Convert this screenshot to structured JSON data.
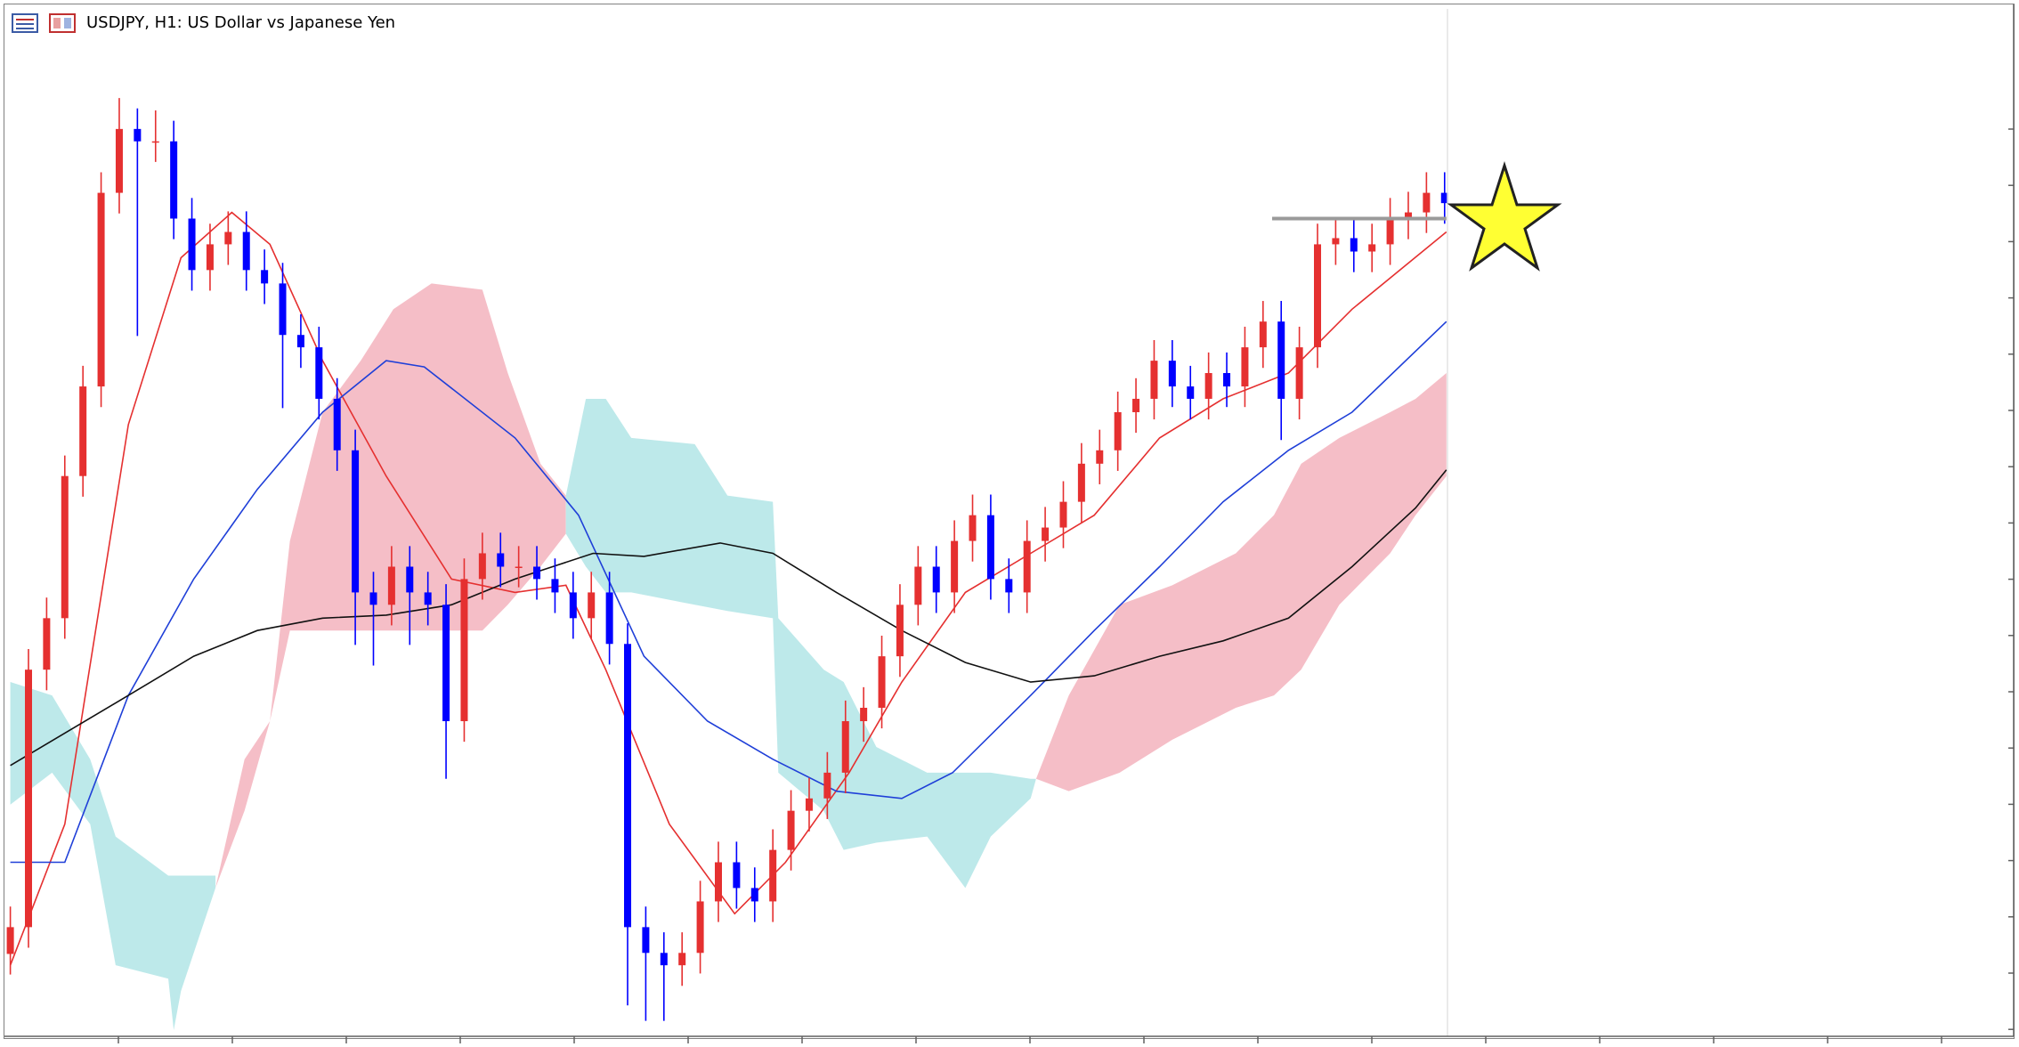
{
  "chart_data": {
    "type": "candlestick",
    "title": "USDJPY, H1:  US Dollar vs Japanese Yen",
    "xlim": [
      0,
      110
    ],
    "ylim": [
      0,
      100
    ],
    "up_color": "#e53030",
    "down_color": "#0000ff",
    "open": [
      8,
      10.6,
      35.6,
      40.6,
      54.4,
      63.1,
      81.9,
      88.1,
      86.9,
      86.9,
      79.4,
      74.4,
      76.9,
      78.1,
      74.4,
      73.1,
      68.1,
      66.9,
      61.9,
      56.9,
      43.1,
      41.9,
      45.6,
      43.1,
      41.9,
      30.6,
      44.4,
      46.9,
      45.6,
      45.6,
      44.4,
      43.1,
      40.6,
      43.1,
      38.1,
      10.6,
      8.1,
      6.9,
      8.1,
      13.1,
      16.9,
      14.4,
      13.1,
      18.1,
      21.9,
      23.1,
      25.6,
      30.6,
      31.9,
      36.9,
      41.9,
      45.6,
      43.1,
      48.1,
      50.6,
      44.4,
      43.1,
      48.1,
      49.4,
      51.9,
      55.6,
      56.9,
      60.6,
      61.9,
      65.6,
      63.1,
      61.9,
      64.4,
      63.1,
      66.9,
      69.4,
      61.9,
      66.9,
      76.9,
      77.5,
      76.2,
      76.9,
      79.4,
      80,
      81.9
    ],
    "high": [
      12.6,
      37.6,
      42.6,
      56.4,
      65.1,
      83.9,
      91.1,
      90.1,
      89.9,
      88.9,
      81.4,
      78.9,
      80.1,
      80.1,
      76.4,
      75.1,
      70.1,
      68.9,
      63.9,
      58.9,
      45.1,
      47.6,
      47.6,
      45.1,
      43.9,
      46.4,
      48.9,
      48.9,
      47.6,
      47.6,
      46.4,
      45.1,
      45.1,
      45.1,
      40.1,
      12.6,
      10.1,
      10.1,
      15.1,
      18.9,
      18.9,
      16.4,
      20.1,
      23.9,
      25.1,
      27.6,
      32.6,
      33.9,
      38.9,
      43.9,
      47.6,
      47.6,
      50.1,
      52.6,
      52.6,
      46.4,
      50.1,
      51.4,
      53.9,
      57.6,
      58.9,
      62.6,
      63.9,
      67.6,
      67.6,
      65.1,
      66.4,
      66.4,
      68.9,
      71.4,
      71.4,
      68.9,
      78.9,
      79.5,
      79.5,
      78.9,
      81.4,
      82,
      83.9,
      83.9
    ],
    "low": [
      6,
      8.6,
      33.6,
      38.6,
      52.4,
      61.1,
      79.9,
      68,
      84.9,
      77.4,
      72.4,
      72.4,
      74.9,
      72.4,
      71.1,
      61,
      64.9,
      59.9,
      54.9,
      38,
      36,
      39.9,
      38,
      39.9,
      25,
      28.6,
      42.4,
      43.6,
      43.6,
      42.4,
      41.1,
      38.6,
      38.6,
      36.1,
      3,
      1.5,
      1.5,
      4.9,
      6.1,
      11.1,
      12.4,
      11.1,
      11.1,
      16.1,
      19.9,
      21.1,
      23.6,
      28.6,
      29.9,
      34.9,
      39.9,
      41.1,
      41.1,
      46.1,
      42.4,
      41.1,
      41.1,
      46.1,
      47.4,
      49.9,
      53.6,
      54.9,
      58.6,
      59.9,
      61.1,
      59.9,
      59.9,
      61.1,
      61.1,
      64.9,
      57.9,
      59.9,
      64.9,
      74.9,
      74.2,
      74.2,
      74.9,
      77.4,
      78,
      78.9
    ],
    "close": [
      10.6,
      35.6,
      40.6,
      54.4,
      63.1,
      81.9,
      88.1,
      86.9,
      86.9,
      79.4,
      74.4,
      76.9,
      78.1,
      74.4,
      73.1,
      68.1,
      66.9,
      61.9,
      56.9,
      43.1,
      41.9,
      45.6,
      43.1,
      41.9,
      30.6,
      44.4,
      46.9,
      45.6,
      45.6,
      44.4,
      43.1,
      40.6,
      43.1,
      38.1,
      10.6,
      8.1,
      6.9,
      8.1,
      13.1,
      16.9,
      14.4,
      13.1,
      18.1,
      21.9,
      23.1,
      25.6,
      30.6,
      31.9,
      36.9,
      41.9,
      45.6,
      43.1,
      48.1,
      50.6,
      44.4,
      43.1,
      48.1,
      49.4,
      51.9,
      55.6,
      56.9,
      60.6,
      61.9,
      65.6,
      63.1,
      61.9,
      64.4,
      63.1,
      66.9,
      69.4,
      61.9,
      66.9,
      76.9,
      77.5,
      76.2,
      76.9,
      79.4,
      80,
      81.9,
      80.9
    ],
    "cloud": [
      {
        "color": "#bde9ea",
        "x": [
          0,
          2.3,
          4.4,
          5.8,
          8.7,
          9,
          9.4,
          11.3
        ],
        "upper": [
          34.4,
          33.1,
          26.9,
          19.4,
          15.6,
          15.6,
          15.6,
          15.6
        ],
        "lower": [
          22.5,
          25.6,
          20.6,
          6.9,
          5.6,
          0.6,
          4.4,
          14.4
        ]
      },
      {
        "color": "#f5bec7",
        "x": [
          11.3,
          12.9,
          14.3,
          15.4,
          17.2,
          19.3,
          21.1,
          23.2,
          26,
          27.4,
          29.2,
          30.6
        ],
        "upper": [
          14.4,
          26.9,
          30.6,
          48.1,
          60.6,
          65.6,
          70.6,
          73.1,
          72.5,
          64.4,
          55.6,
          52.5
        ],
        "lower": [
          14.4,
          21.9,
          30.6,
          39.4,
          39.4,
          39.4,
          39.4,
          39.4,
          39.4,
          41.9,
          45.6,
          48.8
        ]
      },
      {
        "color": "#bde9ea",
        "x": [
          30.6,
          31.7,
          32.8,
          34.2,
          37.7,
          39.5,
          42,
          42.3,
          44.8,
          45.9,
          47.7,
          50.5,
          52.6,
          54,
          56.2,
          56.5
        ],
        "upper": [
          52.5,
          61.9,
          61.9,
          58.1,
          57.5,
          52.5,
          51.9,
          40.6,
          35.6,
          34.4,
          28.1,
          25.6,
          25.6,
          25.6,
          25,
          25
        ],
        "lower": [
          48.8,
          45.6,
          43.1,
          43.1,
          41.9,
          41.3,
          40.6,
          25.6,
          21.9,
          18.1,
          18.8,
          19.4,
          14.4,
          19.4,
          23.1,
          25
        ]
      },
      {
        "color": "#f5bec7",
        "x": [
          56.5,
          58.3,
          61.1,
          64,
          67.5,
          69.6,
          71.1,
          73.2,
          76,
          77.4,
          79.1
        ],
        "upper": [
          25,
          33.1,
          41.9,
          43.8,
          46.9,
          50.6,
          55.6,
          58.1,
          60.6,
          61.9,
          64.4
        ],
        "lower": [
          25,
          23.8,
          25.6,
          28.8,
          31.9,
          33.1,
          35.6,
          41.9,
          46.9,
          50.6,
          54.4
        ]
      }
    ],
    "lines": [
      {
        "color": "#e53030",
        "x": [
          0,
          3,
          6.5,
          9.4,
          12.2,
          14.3,
          17.2,
          20.7,
          24.3,
          27.8,
          30.6,
          32.8,
          36.3,
          39.9,
          42.7,
          46.2,
          49.1,
          52.6,
          56.2,
          59.7,
          63.3,
          66.8,
          70.4,
          73.9,
          79.1
        ],
        "values": [
          6.9,
          20.6,
          59.4,
          75.6,
          80,
          76.9,
          65.6,
          54.4,
          44.4,
          43.1,
          43.8,
          35.6,
          20.6,
          11.9,
          16.9,
          25.6,
          34.4,
          43.1,
          46.9,
          50.6,
          58.1,
          61.9,
          64.4,
          70.6,
          78.1
        ]
      },
      {
        "color": "#1f3fd8",
        "x": [
          0,
          3,
          6.5,
          10.1,
          13.6,
          17.2,
          20.7,
          22.8,
          27.8,
          31.3,
          34.9,
          38.4,
          42,
          45.5,
          49.1,
          51.9,
          56.2,
          59.7,
          63.3,
          66.8,
          70.4,
          73.9,
          79.1
        ],
        "values": [
          16.9,
          16.9,
          33.1,
          44.4,
          53.1,
          60.6,
          65.6,
          65,
          58.1,
          50.6,
          36.9,
          30.6,
          26.9,
          23.8,
          23.1,
          25.6,
          33.1,
          39.4,
          45.6,
          51.9,
          56.9,
          60.6,
          69.4
        ]
      },
      {
        "color": "#111111",
        "x": [
          0,
          6.5,
          10.1,
          13.6,
          17.2,
          20.7,
          24.3,
          27.8,
          32.1,
          34.9,
          39.1,
          42,
          45.5,
          49.1,
          52.6,
          56.2,
          59.7,
          63.3,
          66.8,
          70.4,
          73.9,
          77.4,
          79.1
        ],
        "values": [
          26.3,
          33.1,
          36.9,
          39.4,
          40.6,
          40.9,
          41.9,
          44.4,
          46.9,
          46.6,
          47.9,
          46.9,
          43.1,
          39.4,
          36.3,
          34.4,
          35,
          36.9,
          38.4,
          40.6,
          45.6,
          51.3,
          55
        ]
      }
    ],
    "level": {
      "color": "#9a9a9a",
      "x": [
        69.5,
        79.1
      ],
      "value": 79.4
    }
  }
}
